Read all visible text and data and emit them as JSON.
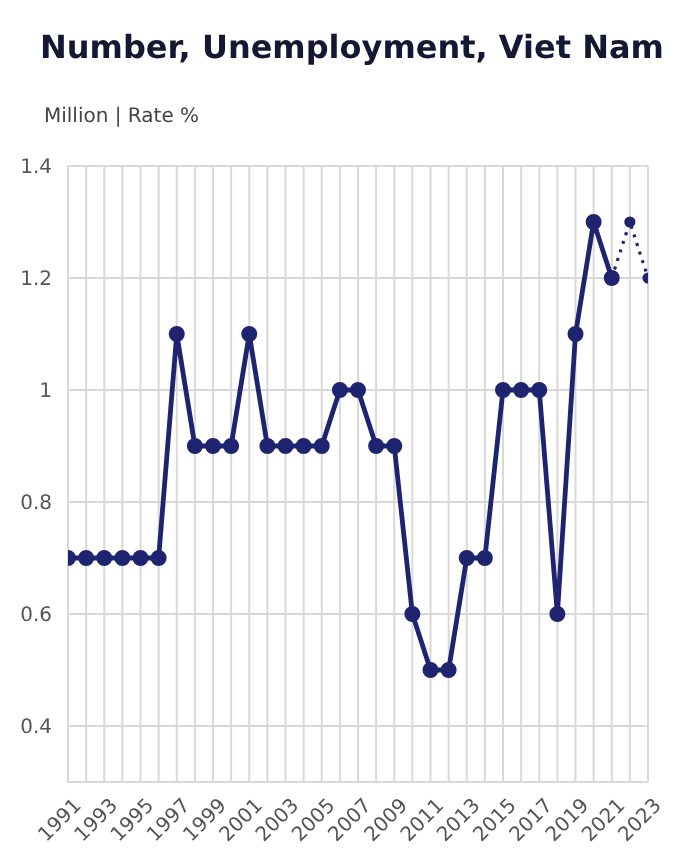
{
  "chart_data": {
    "type": "line",
    "title": "Number, Unemployment, Viet Nam",
    "subtitle": "Million | Rate %",
    "series": [
      {
        "color": "#1f2470",
        "x": [
          1991,
          1992,
          1993,
          1994,
          1995,
          1996,
          1997,
          1998,
          1999,
          2000,
          2001,
          2002,
          2003,
          2004,
          2005,
          2006,
          2007,
          2008,
          2009,
          2010,
          2011,
          2012,
          2013,
          2014,
          2015,
          2016,
          2017,
          2018,
          2019,
          2020,
          2021
        ],
        "values": [
          0.7,
          0.7,
          0.7,
          0.7,
          0.7,
          0.7,
          1.1,
          0.9,
          0.9,
          0.9,
          1.1,
          0.9,
          0.9,
          0.9,
          0.9,
          1.0,
          1.0,
          0.9,
          0.9,
          0.6,
          0.5,
          0.5,
          0.7,
          0.7,
          1.0,
          1.0,
          1.0,
          0.6,
          1.1,
          1.3,
          1.2
        ],
        "line_style": "solid"
      },
      {
        "color": "#1f2470",
        "x": [
          2021,
          2022,
          2023
        ],
        "values": [
          1.2,
          1.3,
          1.2
        ],
        "line_style": "dotted"
      }
    ],
    "xlim": [
      1991,
      2023
    ],
    "xticks": [
      1991,
      {
        "value": 1992,
        "label": null
      },
      1993,
      {
        "value": 1994,
        "label": null
      },
      1995,
      {
        "value": 1996,
        "label": null
      },
      1997,
      {
        "value": 1998,
        "label": null
      },
      1999,
      {
        "value": 2000,
        "label": null
      },
      2001,
      {
        "value": 2002,
        "label": null
      },
      2003,
      {
        "value": 2004,
        "label": null
      },
      2005,
      {
        "value": 2006,
        "label": null
      },
      2007,
      {
        "value": 2008,
        "label": null
      },
      2009,
      {
        "value": 2010,
        "label": null
      },
      2011,
      {
        "value": 2012,
        "label": null
      },
      2013,
      {
        "value": 2014,
        "label": null
      },
      2015,
      {
        "value": 2016,
        "label": null
      },
      2017,
      {
        "value": 2018,
        "label": null
      },
      2019,
      {
        "value": 2020,
        "label": null
      },
      2021,
      {
        "value": 2022,
        "label": null
      },
      2023
    ],
    "ylim": [
      0.3,
      1.4
    ],
    "yticks": [
      0.4,
      0.6,
      0.8,
      1,
      1.2,
      1.4
    ],
    "grid": true,
    "marker": "circle",
    "legend": false
  }
}
